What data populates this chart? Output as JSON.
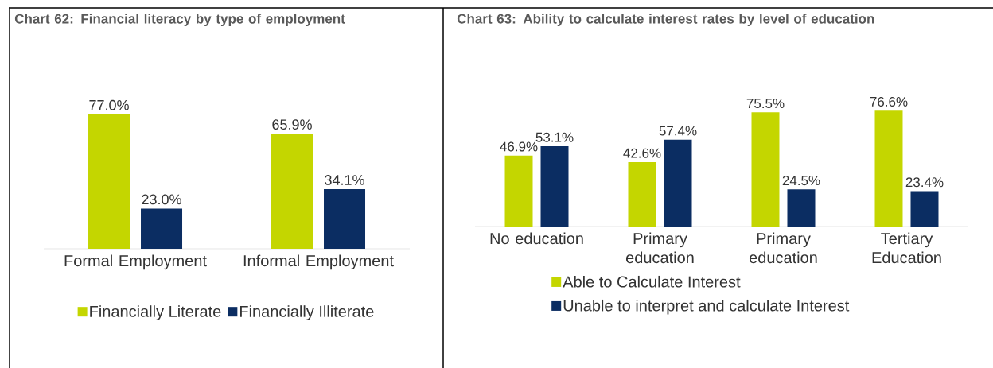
{
  "chart_data": [
    {
      "type": "bar",
      "title": "Chart 62: Financial literacy by type of employment",
      "categories": [
        "Formal Employment",
        "Informal Employment"
      ],
      "legend": "bottom",
      "series": [
        {
          "name": "Financially Literate",
          "color": "#c4d600",
          "values": [
            77.0,
            65.9
          ],
          "value_labels": [
            "77.0%",
            "65.9%"
          ]
        },
        {
          "name": "Financially Illiterate",
          "color": "#0b2d62",
          "values": [
            23.0,
            34.1
          ],
          "value_labels": [
            "23.0%",
            "34.1%"
          ]
        }
      ]
    },
    {
      "type": "bar",
      "title": "Chart 63: Ability to calculate interest rates by level of education",
      "categories": [
        "No education",
        "Primary education",
        "Primary education",
        "Tertiary Education"
      ],
      "legend": "bottom",
      "series": [
        {
          "name": "Able to Calculate Interest",
          "color": "#c4d600",
          "values": [
            46.9,
            42.6,
            75.5,
            76.6
          ],
          "value_labels": [
            "46.9%",
            "42.6%",
            "75.5%",
            "76.6%"
          ]
        },
        {
          "name": "Unable to interpret and calculate Interest",
          "color": "#0b2d62",
          "values": [
            53.1,
            57.4,
            24.5,
            23.4
          ],
          "value_labels": [
            "53.1%",
            "57.4%",
            "24.5%",
            "23.4%"
          ]
        }
      ]
    }
  ]
}
